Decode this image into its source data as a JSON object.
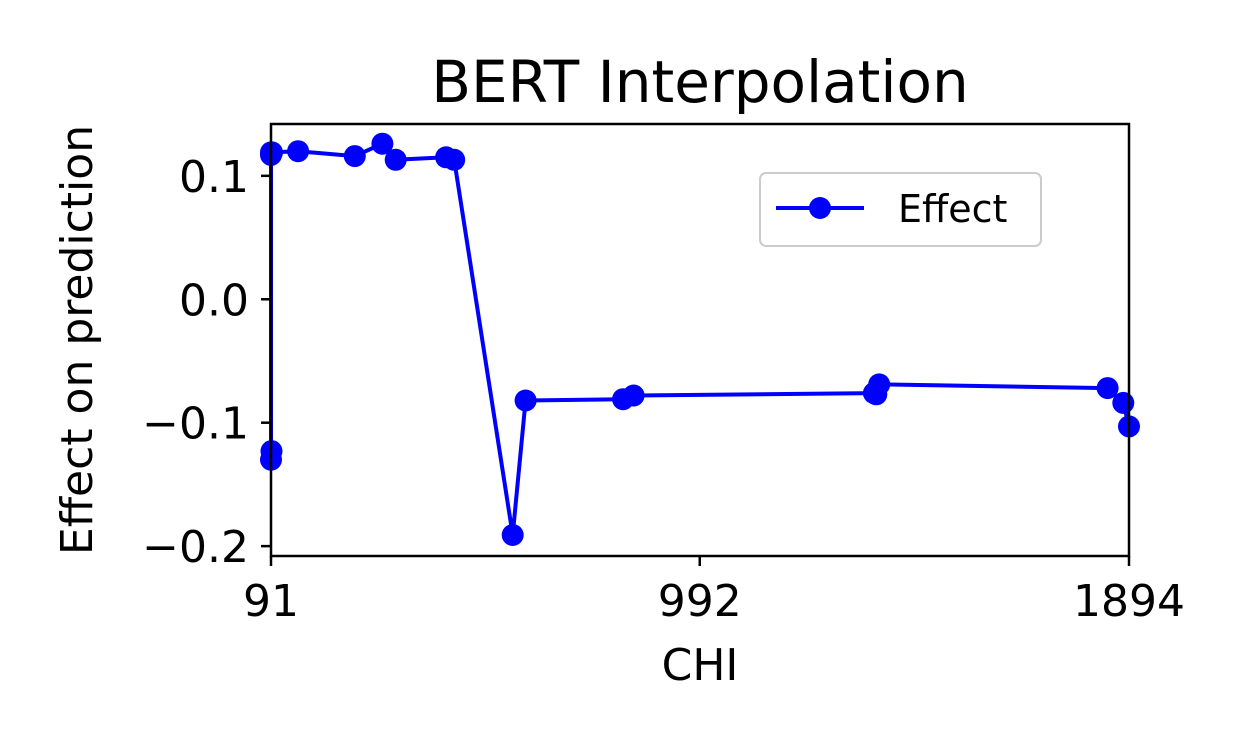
{
  "chart_data": {
    "type": "line",
    "title": "BERT Interpolation",
    "xlabel": "CHI",
    "ylabel": "Effect on prediction",
    "xlim": [
      91,
      1894
    ],
    "ylim": [
      -0.208,
      0.142
    ],
    "xticks": [
      91,
      992,
      1894
    ],
    "xtick_labels": [
      "91",
      "992",
      "1894"
    ],
    "yticks": [
      -0.2,
      -0.1,
      0.0,
      0.1
    ],
    "ytick_labels": [
      "−0.2",
      "−0.1",
      "0.0",
      "0.1"
    ],
    "grid": false,
    "legend_position": "upper-right",
    "series": [
      {
        "name": "Effect",
        "color": "#0000ff",
        "marker": "circle",
        "x": [
          92,
          91,
          91,
          91,
          93,
          148,
          267,
          325,
          353,
          459,
          476,
          599,
          626,
          831,
          853,
          1358,
          1363,
          1369,
          1849,
          1882,
          1894
        ],
        "y": [
          -0.123,
          -0.13,
          0.117,
          0.119,
          0.119,
          0.12,
          0.116,
          0.126,
          0.113,
          0.115,
          0.113,
          -0.191,
          -0.082,
          -0.081,
          -0.078,
          -0.076,
          -0.077,
          -0.069,
          -0.072,
          -0.084,
          -0.103
        ]
      }
    ]
  }
}
